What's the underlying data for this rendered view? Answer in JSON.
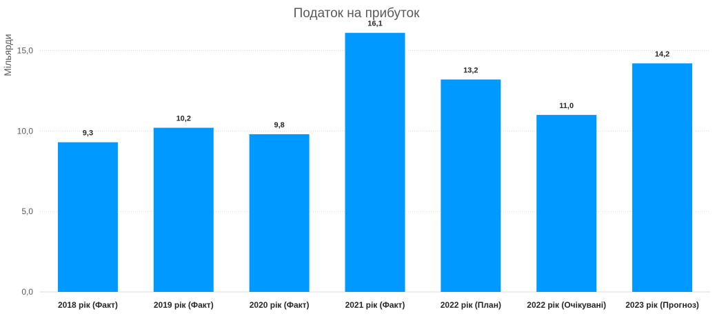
{
  "chart_data": {
    "type": "bar",
    "title": "Податок на прибуток",
    "ylabel": "Мільярди",
    "xlabel": "",
    "categories": [
      "2018 рік (Факт)",
      "2019 рік (Факт)",
      "2020 рік (Факт)",
      "2021 рік (Факт)",
      "2022 рік (План)",
      "2022 рік (Очікувані)",
      "2023 рік (Прогноз)"
    ],
    "values": [
      9.3,
      10.2,
      9.8,
      16.1,
      13.2,
      11.0,
      14.2
    ],
    "data_labels": [
      "9,3",
      "10,2",
      "9,8",
      "16,1",
      "13,2",
      "11,0",
      "14,2"
    ],
    "yticks": [
      0,
      5,
      10,
      15
    ],
    "ytick_labels": [
      "0,0",
      "5,0",
      "10,0",
      "15,0"
    ],
    "ylim": [
      0,
      16.6
    ],
    "grid": true,
    "legend": "none",
    "bar_color": "#0099ff"
  }
}
